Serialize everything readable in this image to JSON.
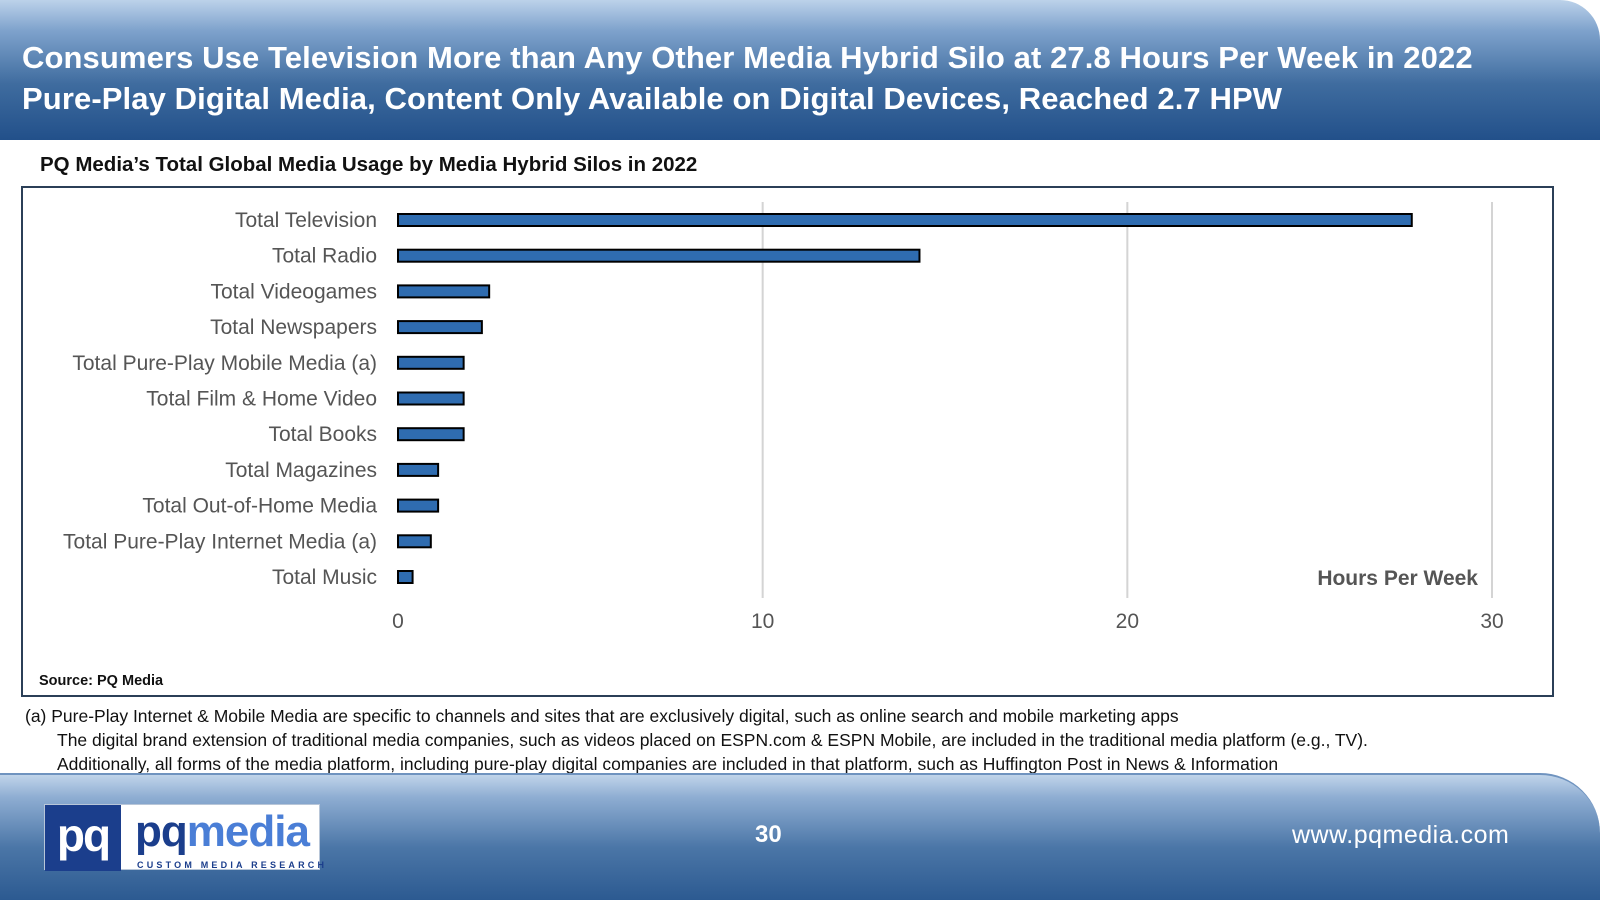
{
  "header": {
    "title_line1": "Consumers Use Television More than Any Other Media Hybrid Silo at 27.8 Hours Per Week in 2022",
    "title_line2": "Pure-Play Digital Media, Content Only Available on Digital Devices, Reached 2.7 HPW"
  },
  "subtitle": "PQ Media’s Total Global Media Usage by Media Hybrid Silos in 2022",
  "source": "Source: PQ Media",
  "chart_data": {
    "type": "bar",
    "orientation": "horizontal",
    "title": "PQ Media’s Total Global Media Usage by Media Hybrid Silos in 2022",
    "xlabel": "Hours Per Week",
    "ylabel": "",
    "xlim": [
      0,
      30
    ],
    "ticks": [
      0,
      10,
      20,
      30
    ],
    "tick_labels": [
      "0",
      "10",
      "20",
      "30"
    ],
    "grid": "vertical",
    "categories": [
      "Total Television",
      "Total Radio",
      "Total Videogames",
      "Total Newspapers",
      "Total Pure-Play Mobile Media (a)",
      "Total Film & Home Video",
      "Total Books",
      "Total Magazines",
      "Total Out-of-Home Media",
      "Total Pure-Play Internet Media (a)",
      "Total Music"
    ],
    "values": [
      27.8,
      14.3,
      2.5,
      2.3,
      1.8,
      1.8,
      1.8,
      1.1,
      1.1,
      0.9,
      0.4
    ],
    "bar_color": "#2f6cb0"
  },
  "notes": {
    "line1": "(a) Pure-Play Internet & Mobile Media are specific to channels and sites that are exclusively digital, such as online search and mobile marketing apps",
    "line2": "The digital brand extension of traditional media companies, such as videos placed on ESPN.com & ESPN Mobile, are included in the traditional media platform (e.g., TV).",
    "line3": "Additionally, all forms of the media platform, including pure-play digital companies are included in that platform, such as Huffington Post in News & Information"
  },
  "footer": {
    "logo_mark": "pq",
    "logo_word_a": "pq",
    "logo_word_b": "media",
    "logo_tagline": "CUSTOM MEDIA RESEARCH",
    "page_number": "30",
    "url": "www.pqmedia.com"
  }
}
